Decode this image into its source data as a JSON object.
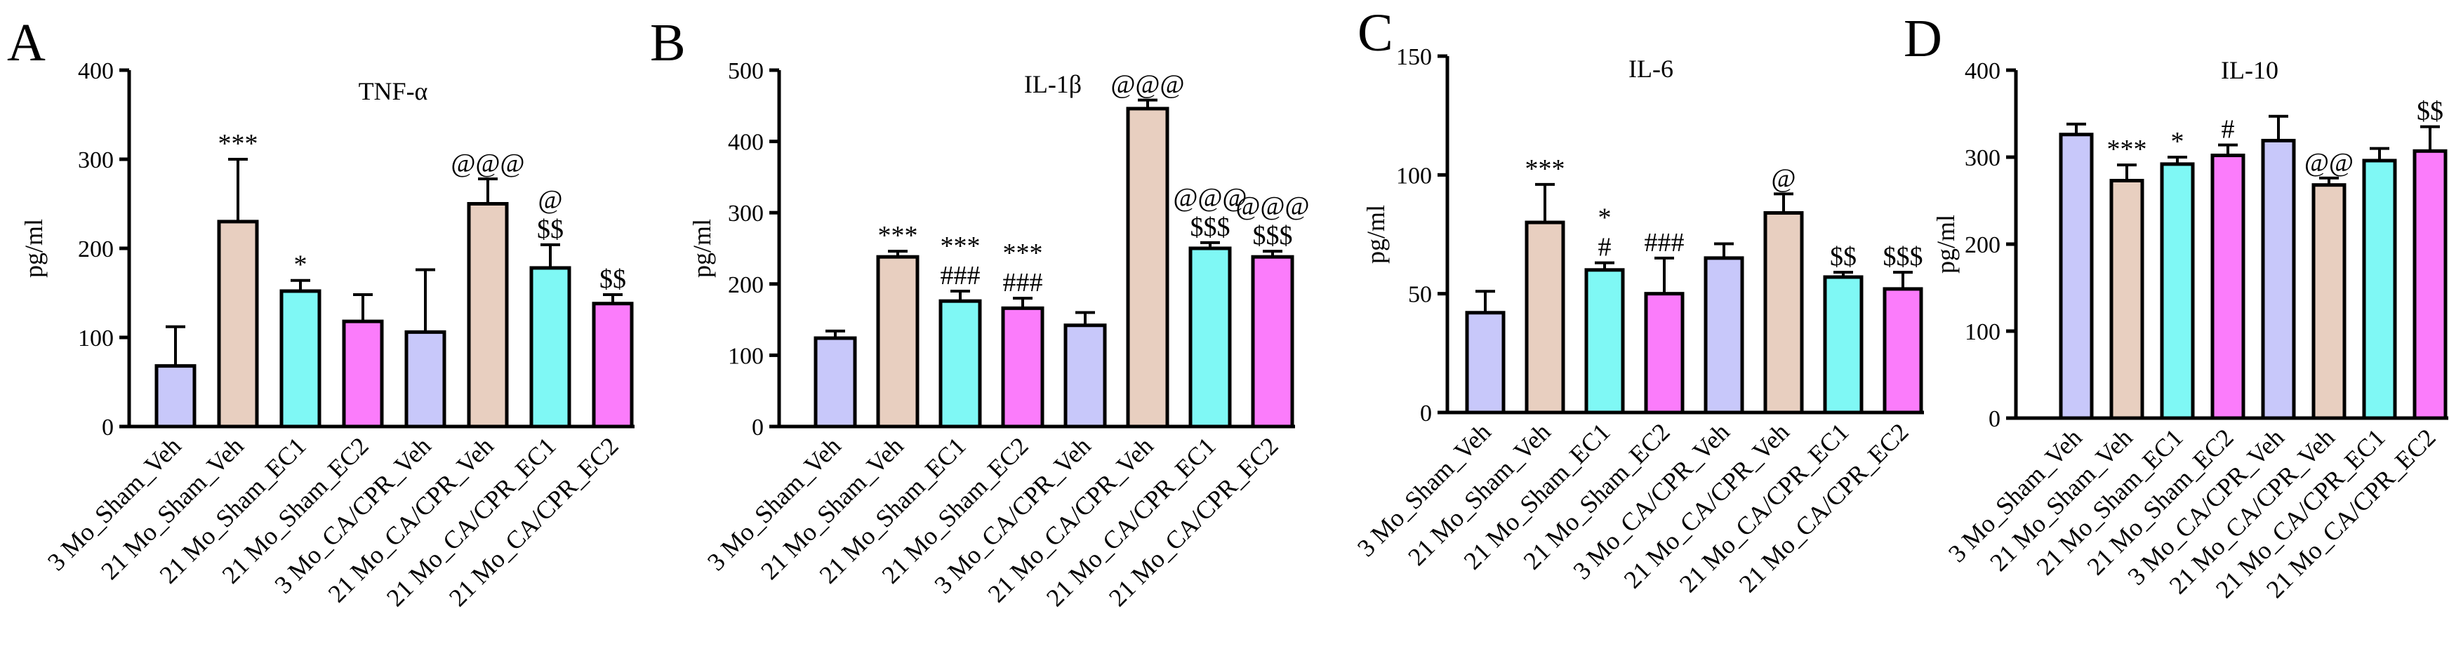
{
  "colors": {
    "veh_sham_3mo": "#c8c8fa",
    "veh_21mo": "#e8cfc0",
    "ec1": "#7ff8f5",
    "ec2": "#fb7cfb"
  },
  "categories": [
    "3 Mo_Sham_Veh",
    "21 Mo_Sham_Veh",
    "21 Mo_Sham_EC1",
    "21 Mo_Sham_EC2",
    "3 Mo_CA/CPR_Veh",
    "21 Mo_CA/CPR_Veh",
    "21 Mo_CA/CPR_EC1",
    "21 Mo_CA/CPR_EC2"
  ],
  "chart_data": [
    {
      "type": "bar",
      "panel": "A",
      "title": "TNF-α",
      "ylabel": "pg/ml",
      "xlabel": "",
      "ylim": [
        0,
        400
      ],
      "yticks": [
        "0",
        "100",
        "200",
        "300",
        "400"
      ],
      "categories": [
        "3 Mo_Sham_Veh",
        "21 Mo_Sham_Veh",
        "21 Mo_Sham_EC1",
        "21 Mo_Sham_EC2",
        "3 Mo_CA/CPR_Veh",
        "21 Mo_CA/CPR_Veh",
        "21 Mo_CA/CPR_EC1",
        "21 Mo_CA/CPR_EC2"
      ],
      "values": [
        68,
        230,
        152,
        118,
        106,
        250,
        178,
        138
      ],
      "errors": [
        44,
        70,
        12,
        30,
        70,
        28,
        26,
        10
      ],
      "annotations": [
        [],
        [
          "***"
        ],
        [
          "*"
        ],
        [],
        [],
        [
          "@@@"
        ],
        [
          "$$",
          "@"
        ],
        [
          "$$"
        ]
      ]
    },
    {
      "type": "bar",
      "panel": "B",
      "title": "IL-1β",
      "ylabel": "pg/ml",
      "xlabel": "",
      "ylim": [
        0,
        500
      ],
      "yticks": [
        "0",
        "100",
        "200",
        "300",
        "400",
        "500"
      ],
      "categories": [
        "3 Mo_Sham_Veh",
        "21 Mo_Sham_Veh",
        "21 Mo_Sham_EC1",
        "21 Mo_Sham_EC2",
        "3 Mo_CA/CPR_Veh",
        "21 Mo_CA/CPR_Veh",
        "21 Mo_CA/CPR_EC1",
        "21 Mo_CA/CPR_EC2"
      ],
      "values": [
        124,
        238,
        176,
        166,
        142,
        446,
        250,
        238
      ],
      "errors": [
        10,
        8,
        14,
        14,
        18,
        12,
        8,
        8
      ],
      "annotations": [
        [],
        [
          "***"
        ],
        [
          "###",
          "***"
        ],
        [
          "###",
          "***"
        ],
        [],
        [
          "@@@"
        ],
        [
          "$$$",
          "@@@"
        ],
        [
          "$$$",
          "@@@"
        ]
      ]
    },
    {
      "type": "bar",
      "panel": "C",
      "title": "IL-6",
      "ylabel": "pg/ml",
      "xlabel": "",
      "ylim": [
        0,
        150
      ],
      "yticks": [
        "0",
        "50",
        "100",
        "150"
      ],
      "categories": [
        "3 Mo_Sham_Veh",
        "21 Mo_Sham_Veh",
        "21 Mo_Sham_EC1",
        "21 Mo_Sham_EC2",
        "3 Mo_CA/CPR_Veh",
        "21 Mo_CA/CPR_Veh",
        "21 Mo_CA/CPR_EC1",
        "21 Mo_CA/CPR_EC2"
      ],
      "values": [
        42,
        80,
        60,
        50,
        65,
        84,
        57,
        52
      ],
      "errors": [
        9,
        16,
        3,
        15,
        6,
        8,
        2,
        7
      ],
      "annotations": [
        [],
        [
          "***"
        ],
        [
          "#",
          "*"
        ],
        [
          "###"
        ],
        [],
        [
          "@"
        ],
        [
          "$$"
        ],
        [
          "$$$"
        ]
      ]
    },
    {
      "type": "bar",
      "panel": "D",
      "title": "IL-10",
      "ylabel": "pg/ml",
      "xlabel": "",
      "ylim": [
        0,
        400
      ],
      "yticks": [
        "0",
        "100",
        "200",
        "300",
        "400"
      ],
      "categories": [
        "3 Mo_Sham_Veh",
        "21 Mo_Sham_Veh",
        "21 Mo_Sham_EC1",
        "21 Mo_Sham_EC2",
        "3 Mo_CA/CPR_Veh",
        "21 Mo_CA/CPR_Veh",
        "21 Mo_CA/CPR_EC1",
        "21 Mo_CA/CPR_EC2"
      ],
      "values": [
        326,
        273,
        292,
        302,
        319,
        268,
        296,
        307
      ],
      "errors": [
        12,
        18,
        8,
        12,
        28,
        8,
        14,
        28
      ],
      "annotations": [
        [],
        [
          "***"
        ],
        [
          "*"
        ],
        [
          "#"
        ],
        [],
        [
          "@@"
        ],
        [],
        [
          "$$"
        ]
      ]
    }
  ]
}
